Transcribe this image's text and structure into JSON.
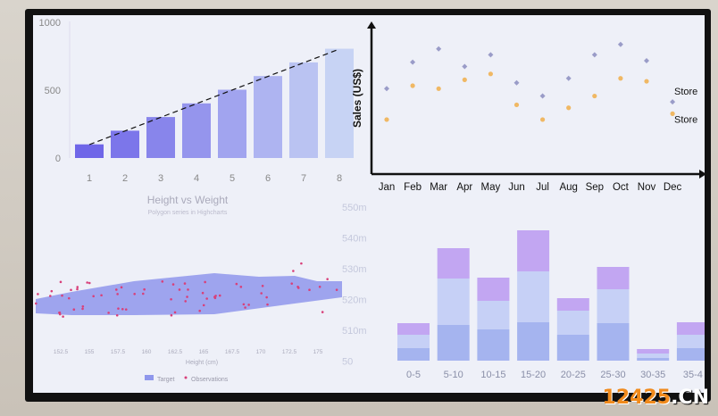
{
  "watermark": {
    "number": "12425",
    "suffix": ".CN"
  },
  "chart_data": [
    {
      "type": "bar",
      "title": "",
      "categories": [
        "1",
        "2",
        "3",
        "4",
        "5",
        "6",
        "7",
        "8"
      ],
      "values": [
        100,
        200,
        300,
        400,
        500,
        600,
        700,
        800
      ],
      "yticks": [
        "0",
        "500",
        "1000"
      ],
      "ylim": [
        0,
        1000
      ],
      "trendline": "dashed",
      "colors": [
        "#6f66e8",
        "#c7d3f4"
      ]
    },
    {
      "type": "scatter",
      "ylabel": "Sales (US$)",
      "categories": [
        "Jan",
        "Feb",
        "Mar",
        "Apr",
        "May",
        "Jun",
        "Jul",
        "Aug",
        "Sep",
        "Oct",
        "Nov",
        "Dec"
      ],
      "series": [
        {
          "name": "Store",
          "values": [
            58,
            76,
            85,
            73,
            81,
            62,
            53,
            65,
            81,
            88,
            77,
            49
          ],
          "color": "#9a9cc8",
          "marker": "diamond"
        },
        {
          "name": "Store",
          "values": [
            37,
            60,
            58,
            64,
            68,
            47,
            37,
            45,
            53,
            65,
            63,
            41
          ],
          "color": "#f0b864",
          "marker": "circle"
        }
      ],
      "ylim": [
        0,
        100
      ]
    },
    {
      "type": "area",
      "title": "Height vs Weight",
      "subtitle": "Polygon series in Highcharts",
      "xlabel": "Height (cm)",
      "xticks": [
        "152.5",
        "155",
        "157.5",
        "160",
        "162.5",
        "165",
        "167.5",
        "170",
        "172.5",
        "175"
      ],
      "right_ticks": [
        "550m",
        "540m",
        "530m",
        "520m",
        "510m",
        "50"
      ],
      "legend": [
        "Target",
        "Observations"
      ],
      "colors": {
        "target": "#8f97ec",
        "observations": "#d8407a"
      }
    },
    {
      "type": "bar",
      "stacked": true,
      "categories": [
        "0-5",
        "5-10",
        "10-15",
        "15-20",
        "20-25",
        "25-30",
        "30-35",
        "35-4"
      ],
      "series": [
        {
          "values": [
            14,
            40,
            35,
            43,
            29,
            42,
            3,
            14
          ],
          "color": "#a5b4ef"
        },
        {
          "values": [
            15,
            52,
            32,
            57,
            27,
            38,
            5,
            15
          ],
          "color": "#c6d0f6"
        },
        {
          "values": [
            13,
            34,
            26,
            46,
            14,
            25,
            5,
            14
          ],
          "color": "#c2a6f2"
        }
      ]
    }
  ]
}
